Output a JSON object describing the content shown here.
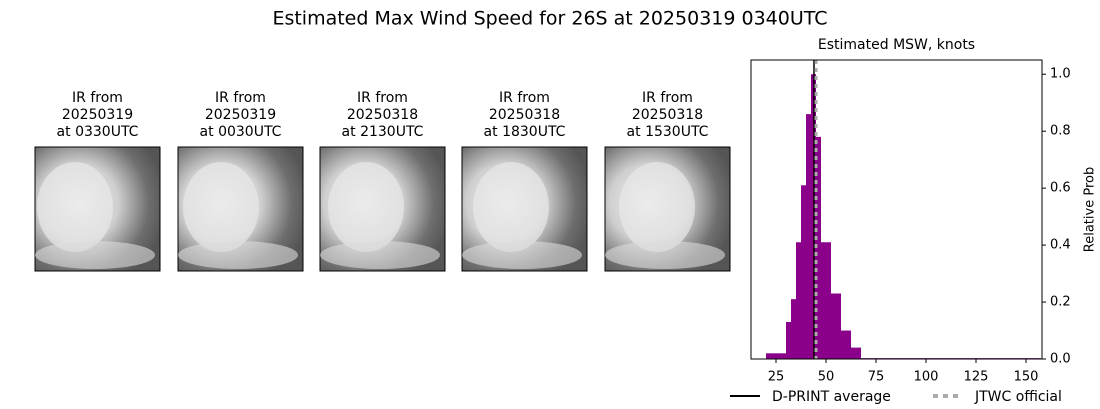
{
  "title": "Estimated Max Wind Speed for 26S at 20250319 0340UTC",
  "panels": [
    {
      "title": [
        "IR from",
        "20250319",
        "at 0330UTC"
      ]
    },
    {
      "title": [
        "IR from",
        "20250319",
        "at 0030UTC"
      ]
    },
    {
      "title": [
        "IR from",
        "20250318",
        "at 2130UTC"
      ]
    },
    {
      "title": [
        "IR from",
        "20250318",
        "at 1830UTC"
      ]
    },
    {
      "title": [
        "IR from",
        "20250318",
        "at 1530UTC"
      ]
    }
  ],
  "chart_data": {
    "type": "histogram",
    "title": "Estimated MSW, knots",
    "y_label": "Relative Prob",
    "color": "#8b008b",
    "bins": [
      20,
      22.5,
      25,
      27.5,
      30,
      32.5,
      35,
      37.5,
      40,
      42.5,
      45,
      47.5,
      50,
      52.5,
      55,
      57.5,
      60,
      62.5,
      65,
      67.5,
      157.5
    ],
    "values": [
      0.02,
      0.02,
      0.02,
      0.02,
      0.13,
      0.21,
      0.41,
      0.61,
      0.86,
      1.0,
      0.78,
      0.41,
      0.41,
      0.23,
      0.23,
      0.1,
      0.1,
      0.04,
      0.04,
      0.003
    ],
    "xlim": [
      12.5,
      158
    ],
    "xticks": [
      25,
      50,
      75,
      100,
      125,
      150
    ],
    "ylim": [
      0,
      1.05
    ],
    "yticks": [
      {
        "value": 0,
        "label": "0.0"
      },
      0.2,
      0.4,
      0.6,
      0.8,
      {
        "value": 1,
        "label": "1.0"
      }
    ],
    "lines": [
      {
        "name": "D-PRINT average",
        "value": 44,
        "color": "#000000",
        "style": "solid"
      },
      {
        "name": "JTWC official",
        "value": 45,
        "color": "#aaaaaa",
        "style": "dotted"
      }
    ]
  }
}
